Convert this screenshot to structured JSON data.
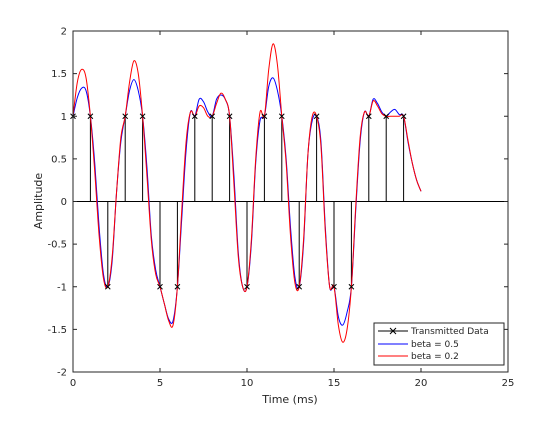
{
  "chart_data": {
    "type": "line",
    "title": "",
    "xlabel": "Time (ms)",
    "ylabel": "Amplitude",
    "xlim": [
      0,
      25
    ],
    "ylim": [
      -2,
      2
    ],
    "xticks": [
      0,
      5,
      10,
      15,
      20,
      25
    ],
    "yticks": [
      -2,
      -1.5,
      -1,
      -0.5,
      0,
      0.5,
      1,
      1.5,
      2
    ],
    "grid": false,
    "legend_location": "bottom-right",
    "stem_series": {
      "name": "Transmitted Data",
      "color": "#000000",
      "marker": "x",
      "x": [
        0,
        1,
        2,
        3,
        4,
        5,
        6,
        7,
        8,
        9,
        10,
        11,
        12,
        13,
        14,
        15,
        16,
        17,
        18,
        19
      ],
      "values": [
        1,
        1,
        -1,
        1,
        1,
        -1,
        -1,
        1,
        1,
        1,
        -1,
        1,
        1,
        -1,
        1,
        -1,
        -1,
        1,
        1,
        1
      ]
    },
    "series": [
      {
        "name": "beta = 0.5",
        "color": "#0000ff",
        "x": [
          0,
          0.25,
          0.5,
          0.75,
          1,
          1.25,
          1.5,
          1.75,
          2,
          2.25,
          2.5,
          2.75,
          3,
          3.25,
          3.5,
          3.75,
          4,
          4.25,
          4.5,
          4.75,
          5,
          5.25,
          5.5,
          5.75,
          6,
          6.25,
          6.5,
          6.75,
          7,
          7.25,
          7.5,
          7.75,
          8,
          8.25,
          8.5,
          8.75,
          9,
          9.25,
          9.5,
          9.75,
          10,
          10.25,
          10.5,
          10.75,
          11,
          11.25,
          11.5,
          11.75,
          12,
          12.25,
          12.5,
          12.75,
          13,
          13.25,
          13.5,
          13.75,
          14,
          14.25,
          14.5,
          14.75,
          15,
          15.25,
          15.5,
          15.75,
          16,
          16.25,
          16.5,
          16.75,
          17,
          17.25,
          17.5,
          17.75,
          18,
          18.25,
          18.5,
          18.75,
          19,
          19.25,
          19.5,
          19.75,
          20
        ],
        "values": [
          1.0,
          1.22,
          1.33,
          1.3,
          1.0,
          0.45,
          -0.3,
          -0.85,
          -1.0,
          -0.7,
          0.1,
          0.7,
          1.0,
          1.3,
          1.43,
          1.3,
          1.0,
          0.4,
          -0.4,
          -0.8,
          -1.0,
          -1.2,
          -1.38,
          -1.4,
          -1.0,
          -0.2,
          0.6,
          1.05,
          1.0,
          1.2,
          1.17,
          1.05,
          1.0,
          1.2,
          1.25,
          1.2,
          1.0,
          0.3,
          -0.6,
          -1.0,
          -1.0,
          -0.5,
          0.45,
          0.95,
          1.0,
          1.35,
          1.45,
          1.3,
          1.0,
          0.5,
          -0.3,
          -0.88,
          -1.0,
          -0.5,
          0.55,
          0.95,
          1.0,
          0.7,
          -0.3,
          -1.0,
          -1.0,
          -1.35,
          -1.45,
          -1.3,
          -1.0,
          -0.1,
          0.7,
          1.05,
          1.0,
          1.2,
          1.15,
          1.05,
          1.0,
          1.05,
          1.08,
          1.02,
          1.0,
          0.7,
          0.45,
          0.25,
          0.12
        ]
      },
      {
        "name": "beta = 0.2",
        "color": "#ff0000",
        "x": [
          0,
          0.25,
          0.5,
          0.75,
          1,
          1.25,
          1.5,
          1.75,
          2,
          2.25,
          2.5,
          2.75,
          3,
          3.25,
          3.5,
          3.75,
          4,
          4.25,
          4.5,
          4.75,
          5,
          5.25,
          5.5,
          5.75,
          6,
          6.25,
          6.5,
          6.75,
          7,
          7.25,
          7.5,
          7.75,
          8,
          8.25,
          8.5,
          8.75,
          9,
          9.25,
          9.5,
          9.75,
          10,
          10.25,
          10.5,
          10.75,
          11,
          11.25,
          11.5,
          11.75,
          12,
          12.25,
          12.5,
          12.75,
          13,
          13.25,
          13.5,
          13.75,
          14,
          14.25,
          14.5,
          14.75,
          15,
          15.25,
          15.5,
          15.75,
          16,
          16.25,
          16.5,
          16.75,
          17,
          17.25,
          17.5,
          17.75,
          18,
          18.25,
          18.5,
          18.75,
          19,
          19.25,
          19.5,
          19.75,
          20
        ],
        "values": [
          1.0,
          1.4,
          1.55,
          1.45,
          1.0,
          0.35,
          -0.4,
          -0.9,
          -1.0,
          -0.65,
          0.1,
          0.75,
          1.0,
          1.4,
          1.65,
          1.5,
          1.0,
          0.3,
          -0.45,
          -0.85,
          -1.0,
          -1.2,
          -1.4,
          -1.45,
          -1.0,
          -0.1,
          0.7,
          1.05,
          1.0,
          1.12,
          1.1,
          1.0,
          1.0,
          1.15,
          1.27,
          1.2,
          1.0,
          0.2,
          -0.65,
          -1.0,
          -1.0,
          -0.45,
          0.5,
          1.05,
          1.0,
          1.55,
          1.85,
          1.6,
          1.0,
          0.45,
          -0.4,
          -0.95,
          -1.0,
          -0.45,
          0.55,
          1.0,
          1.0,
          0.65,
          -0.35,
          -1.0,
          -1.0,
          -1.45,
          -1.65,
          -1.5,
          -1.0,
          -0.05,
          0.75,
          1.05,
          1.0,
          1.18,
          1.12,
          1.03,
          1.0,
          1.0,
          1.0,
          1.0,
          1.0,
          0.72,
          0.45,
          0.25,
          0.12
        ]
      }
    ]
  }
}
